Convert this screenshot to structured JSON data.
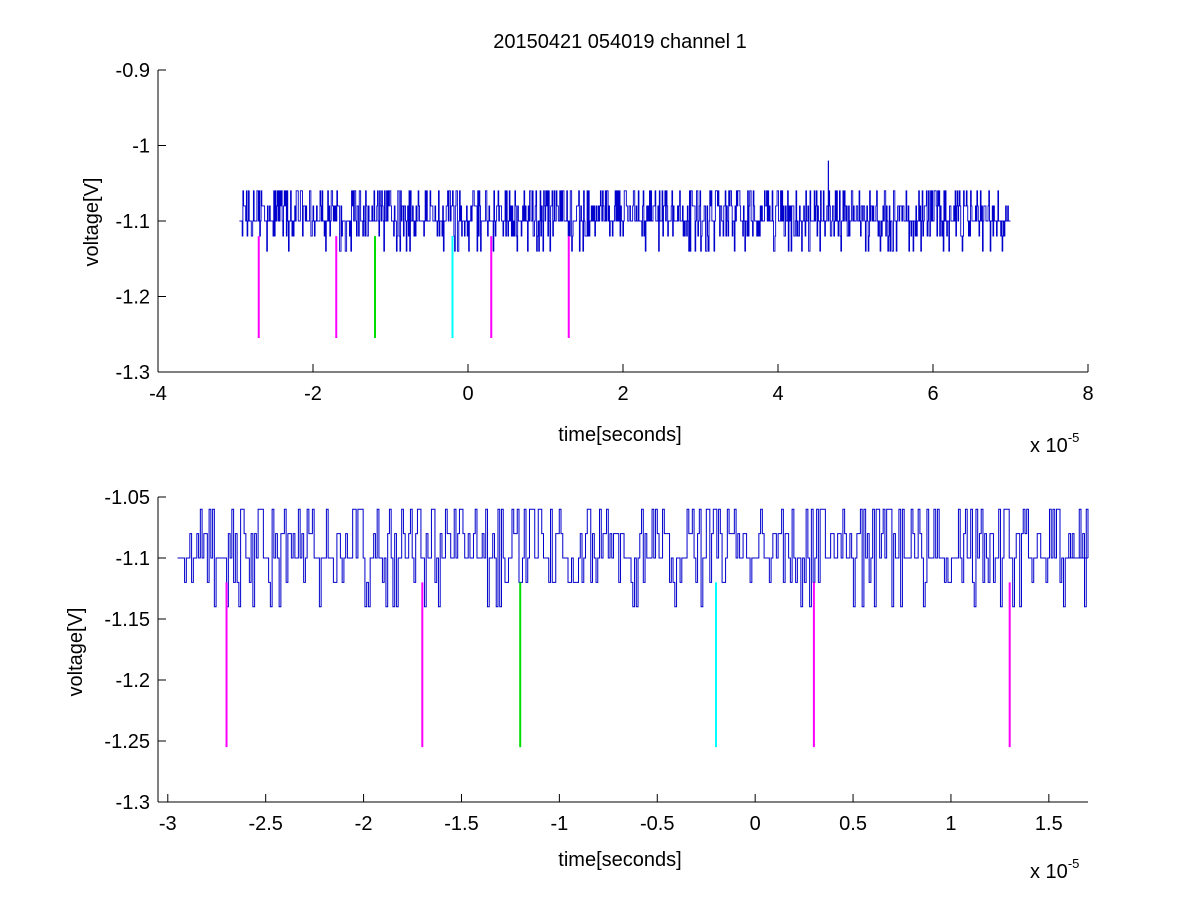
{
  "figure": {
    "title": "20150421 054019 channel 1",
    "colors": {
      "signal": "#0000cc",
      "magenta": "#ff00ff",
      "green": "#00dd00",
      "cyan": "#00ffff",
      "axis": "#000000"
    }
  },
  "chart_data": [
    {
      "type": "line",
      "title": "20150421 054019 channel 1",
      "xlabel": "time[seconds]",
      "ylabel": "voltage[V]",
      "x_multiplier_label": "x 10",
      "x_multiplier_exponent": "-5",
      "xlim": [
        -4e-05,
        8e-05
      ],
      "ylim": [
        -1.3,
        -0.9
      ],
      "xticks": [
        -4,
        -2,
        0,
        2,
        4,
        6,
        8
      ],
      "yticks": [
        -1.3,
        -1.2,
        -1.1,
        -1.0,
        -0.9
      ],
      "grid": false,
      "signal": {
        "x_start": -2.95e-05,
        "x_end": 7e-05,
        "baseline": -1.1,
        "levels": [
          -1.14,
          -1.12,
          -1.1,
          -1.08,
          -1.06
        ],
        "spike": {
          "x": 4.65e-05,
          "y": -1.02
        }
      },
      "markers": [
        {
          "x": -2.7e-05,
          "y_top": -1.12,
          "y_bottom": -1.255,
          "color": "magenta"
        },
        {
          "x": -1.7e-05,
          "y_top": -1.12,
          "y_bottom": -1.255,
          "color": "magenta"
        },
        {
          "x": -1.2e-05,
          "y_top": -1.12,
          "y_bottom": -1.255,
          "color": "green"
        },
        {
          "x": -2e-06,
          "y_top": -1.12,
          "y_bottom": -1.255,
          "color": "cyan"
        },
        {
          "x": 3e-06,
          "y_top": -1.12,
          "y_bottom": -1.255,
          "color": "magenta"
        },
        {
          "x": 1.3e-05,
          "y_top": -1.12,
          "y_bottom": -1.255,
          "color": "magenta"
        }
      ]
    },
    {
      "type": "line",
      "title": "",
      "xlabel": "time[seconds]",
      "ylabel": "voltage[V]",
      "x_multiplier_label": "x 10",
      "x_multiplier_exponent": "-5",
      "xlim": [
        -3.05e-05,
        1.7e-05
      ],
      "ylim": [
        -1.3,
        -1.05
      ],
      "xticks": [
        -3,
        -2.5,
        -2,
        -1.5,
        -1,
        -0.5,
        0,
        0.5,
        1,
        1.5
      ],
      "yticks": [
        -1.3,
        -1.25,
        -1.2,
        -1.15,
        -1.1,
        -1.05
      ],
      "grid": false,
      "signal": {
        "x_start": -2.95e-05,
        "x_end": 1.7e-05,
        "baseline": -1.1,
        "levels": [
          -1.14,
          -1.12,
          -1.1,
          -1.08,
          -1.06
        ]
      },
      "markers": [
        {
          "x": -2.7e-05,
          "y_top": -1.12,
          "y_bottom": -1.255,
          "color": "magenta"
        },
        {
          "x": -1.7e-05,
          "y_top": -1.12,
          "y_bottom": -1.255,
          "color": "magenta"
        },
        {
          "x": -1.2e-05,
          "y_top": -1.12,
          "y_bottom": -1.255,
          "color": "green"
        },
        {
          "x": -2e-06,
          "y_top": -1.12,
          "y_bottom": -1.255,
          "color": "cyan"
        },
        {
          "x": 3e-06,
          "y_top": -1.12,
          "y_bottom": -1.255,
          "color": "magenta"
        },
        {
          "x": 1.3e-05,
          "y_top": -1.12,
          "y_bottom": -1.255,
          "color": "magenta"
        }
      ]
    }
  ]
}
